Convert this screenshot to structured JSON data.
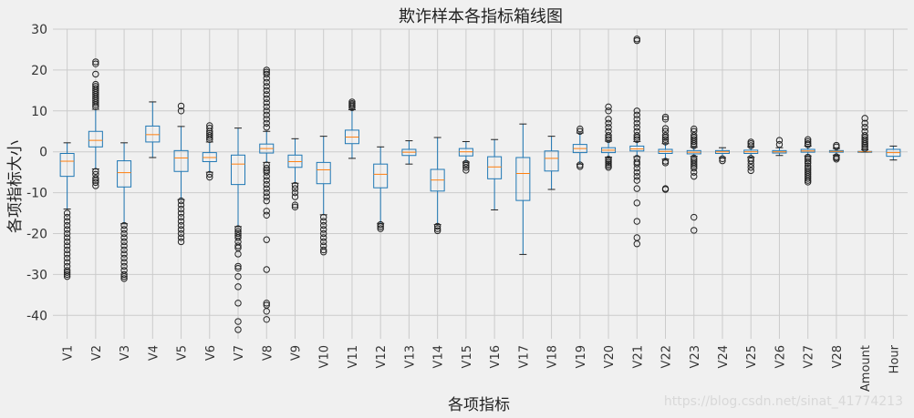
{
  "chart_data": {
    "type": "boxplot",
    "title": "欺诈样本各指标箱线图",
    "xlabel": "各项指标",
    "ylabel": "各项指标大小",
    "ylim": [
      -46,
      30
    ],
    "yticks": [
      30,
      20,
      10,
      0,
      -10,
      -20,
      -30,
      -40
    ],
    "grid": true,
    "categories": [
      "V1",
      "V2",
      "V3",
      "V4",
      "V5",
      "V6",
      "V7",
      "V8",
      "V9",
      "V10",
      "V11",
      "V12",
      "V13",
      "V14",
      "V15",
      "V16",
      "V17",
      "V18",
      "V19",
      "V20",
      "V21",
      "V22",
      "V23",
      "V24",
      "V25",
      "V26",
      "V27",
      "V28",
      "Amount",
      "Hour"
    ],
    "series": [
      {
        "wlo": -14,
        "q1": -6,
        "med": -2.3,
        "q3": -0.4,
        "whi": 2.2,
        "out": [
          -15,
          -16,
          -17,
          -18,
          -19,
          -20,
          -21,
          -22,
          -23,
          -24,
          -25,
          -26,
          -27,
          -28,
          -29,
          -29.5,
          -30,
          -30.5
        ]
      },
      {
        "wlo": -4.2,
        "q1": 1.2,
        "med": 2.8,
        "q3": 5,
        "whi": 10.4,
        "out": [
          -4.8,
          -5.5,
          -6.5,
          -7,
          -7.5,
          -8.3,
          11,
          11.5,
          12,
          12.5,
          13,
          13.5,
          14,
          14.5,
          15,
          15.5,
          16,
          16.5,
          19,
          21.5,
          22
        ]
      },
      {
        "wlo": -17.6,
        "q1": -8.6,
        "med": -5.1,
        "q3": -2.2,
        "whi": 2.2,
        "out": [
          -18,
          -19,
          -20,
          -21,
          -22,
          -23,
          -24,
          -25,
          -26,
          -27,
          -28,
          -29,
          -30,
          -30.5,
          -31
        ]
      },
      {
        "wlo": -1.4,
        "q1": 2.4,
        "med": 4.2,
        "q3": 6.3,
        "whi": 12.2,
        "out": []
      },
      {
        "wlo": -11.7,
        "q1": -4.8,
        "med": -1.5,
        "q3": 0.3,
        "whi": 6.2,
        "out": [
          -12,
          -13,
          -14,
          -15,
          -16,
          -17,
          -18,
          -19,
          -20,
          -21,
          -22,
          10,
          11.2
        ]
      },
      {
        "wlo": -5,
        "q1": -2.4,
        "med": -1.4,
        "q3": -0.2,
        "whi": 2.4,
        "out": [
          -5.5,
          -6.2,
          3,
          3.5,
          4,
          4.5,
          5,
          5.8,
          6.4
        ]
      },
      {
        "wlo": -18.3,
        "q1": -8,
        "med": -3,
        "q3": -0.8,
        "whi": 5.8,
        "out": [
          -18.8,
          -19.5,
          -20,
          -20.5,
          -21,
          -22,
          -23,
          -23.5,
          -25,
          -28,
          -28.5,
          -30.5,
          -33,
          -37,
          -41.5,
          -43.5
        ]
      },
      {
        "wlo": -2.6,
        "q1": -0.3,
        "med": 0.8,
        "q3": 1.9,
        "whi": 5,
        "out": [
          -3.2,
          -4,
          -4.5,
          -5,
          -6,
          -7,
          -8,
          -9,
          -10,
          -11,
          -12,
          -14.5,
          -15.5,
          -21.5,
          -28.8,
          -37,
          -37.5,
          -39,
          -41,
          6,
          7,
          8,
          9,
          10,
          11,
          12,
          13,
          14,
          15,
          16,
          17,
          18,
          19,
          19.5,
          20
        ]
      },
      {
        "wlo": -7.7,
        "q1": -3.8,
        "med": -2.4,
        "q3": -0.8,
        "whi": 3.2,
        "out": [
          -8.2,
          -9,
          -10,
          -11,
          -13,
          -13.5
        ]
      },
      {
        "wlo": -15.4,
        "q1": -7.8,
        "med": -4.4,
        "q3": -2.6,
        "whi": 3.8,
        "out": [
          -16,
          -17,
          -18,
          -19,
          -20,
          -21,
          -22,
          -23,
          -24,
          -24.5
        ]
      },
      {
        "wlo": -1.6,
        "q1": 2,
        "med": 3.6,
        "q3": 5.3,
        "whi": 10.3,
        "out": [
          10.8,
          11.2,
          11.5,
          11.8,
          12.2
        ]
      },
      {
        "wlo": -17.5,
        "q1": -8.8,
        "med": -5.5,
        "q3": -3,
        "whi": 1.2,
        "out": [
          -17.8,
          -18.3,
          -18.8
        ]
      },
      {
        "wlo": -3,
        "q1": -0.9,
        "med": -0.1,
        "q3": 0.6,
        "whi": 2.7,
        "out": []
      },
      {
        "wlo": -17.8,
        "q1": -9.6,
        "med": -6.9,
        "q3": -4.3,
        "whi": 3.5,
        "out": [
          -18.2,
          -18.8,
          -19.3
        ]
      },
      {
        "wlo": -2.5,
        "q1": -1,
        "med": 0,
        "q3": 0.8,
        "whi": 2.5,
        "out": [
          -2.8,
          -3.3,
          -3.8,
          -4.5
        ]
      },
      {
        "wlo": -14.2,
        "q1": -6.6,
        "med": -3.7,
        "q3": -1.2,
        "whi": 3,
        "out": []
      },
      {
        "wlo": -25.1,
        "q1": -11.9,
        "med": -5.3,
        "q3": -1.4,
        "whi": 6.8,
        "out": []
      },
      {
        "wlo": -9.2,
        "q1": -4.7,
        "med": -1.6,
        "q3": 0.2,
        "whi": 3.8,
        "out": []
      },
      {
        "wlo": -3,
        "q1": -0.2,
        "med": 0.8,
        "q3": 1.8,
        "whi": 4.6,
        "out": [
          -3.2,
          -3.6,
          5,
          5.6
        ]
      },
      {
        "wlo": -1.3,
        "q1": -0.2,
        "med": 0.4,
        "q3": 1,
        "whi": 2.6,
        "out": [
          -1.8,
          -2.2,
          -2.6,
          -3,
          -3.4,
          -3.8,
          3,
          3.5,
          4,
          5,
          6,
          7,
          8,
          10,
          11
        ]
      },
      {
        "wlo": -1.2,
        "q1": 0.2,
        "med": 0.7,
        "q3": 1.4,
        "whi": 2.5,
        "out": [
          -1.6,
          -2.5,
          -3,
          -4,
          -5,
          -6,
          -7,
          -9,
          -12.5,
          -17,
          -21,
          -22.5,
          3,
          3.5,
          4,
          5,
          6,
          7,
          8,
          9,
          10,
          27.2,
          27.6
        ]
      },
      {
        "wlo": -1.8,
        "q1": -0.4,
        "med": 0.1,
        "q3": 0.6,
        "whi": 2,
        "out": [
          -2.3,
          -2.7,
          -9,
          -9.2,
          2.4,
          3,
          3.5,
          4,
          5,
          5.7,
          8,
          8.5
        ]
      },
      {
        "wlo": -1.1,
        "q1": -0.5,
        "med": -0.1,
        "q3": 0.3,
        "whi": 1.1,
        "out": [
          -1.5,
          -2,
          -2.5,
          -3,
          -3.5,
          -4,
          -5,
          -6,
          -16,
          -19.2,
          1.5,
          2,
          2.5,
          3,
          3.5,
          4,
          5,
          5.6
        ]
      },
      {
        "wlo": -1.4,
        "q1": -0.4,
        "med": 0,
        "q3": 0.3,
        "whi": 1,
        "out": [
          -1.7,
          -2.2
        ]
      },
      {
        "wlo": -1.3,
        "q1": -0.4,
        "med": 0,
        "q3": 0.4,
        "whi": 1.2,
        "out": [
          -1.6,
          -2.2,
          -3,
          -3.8,
          -4.6,
          1.5,
          2,
          2.4
        ]
      },
      {
        "wlo": -0.9,
        "q1": -0.3,
        "med": 0,
        "q3": 0.3,
        "whi": 1,
        "out": [
          1.8,
          2.8
        ]
      },
      {
        "wlo": -1,
        "q1": -0.1,
        "med": 0.2,
        "q3": 0.6,
        "whi": 1.4,
        "out": [
          -1.3,
          -1.8,
          -2.3,
          -2.8,
          -3.5,
          -4,
          -4.5,
          -5,
          -5.5,
          -6,
          -6.5,
          -7,
          -7.4,
          1.7,
          2,
          2.5,
          3
        ]
      },
      {
        "wlo": -0.8,
        "q1": -0.1,
        "med": 0.1,
        "q3": 0.3,
        "whi": 0.8,
        "out": [
          -1.2,
          -1.5,
          -1.8,
          1.2,
          1.6
        ]
      },
      {
        "wlo": -0.1,
        "q1": -0.1,
        "med": 0,
        "q3": 0.1,
        "whi": 0.5,
        "out": [
          0.8,
          1.2,
          1.6,
          2,
          2.5,
          3,
          3.5,
          4,
          5,
          6,
          7,
          8.2
        ]
      },
      {
        "wlo": -2,
        "q1": -1.1,
        "med": -0.2,
        "q3": 0.6,
        "whi": 1.4,
        "out": []
      }
    ]
  },
  "watermark": "https://blog.csdn.net/sinat_41774213"
}
